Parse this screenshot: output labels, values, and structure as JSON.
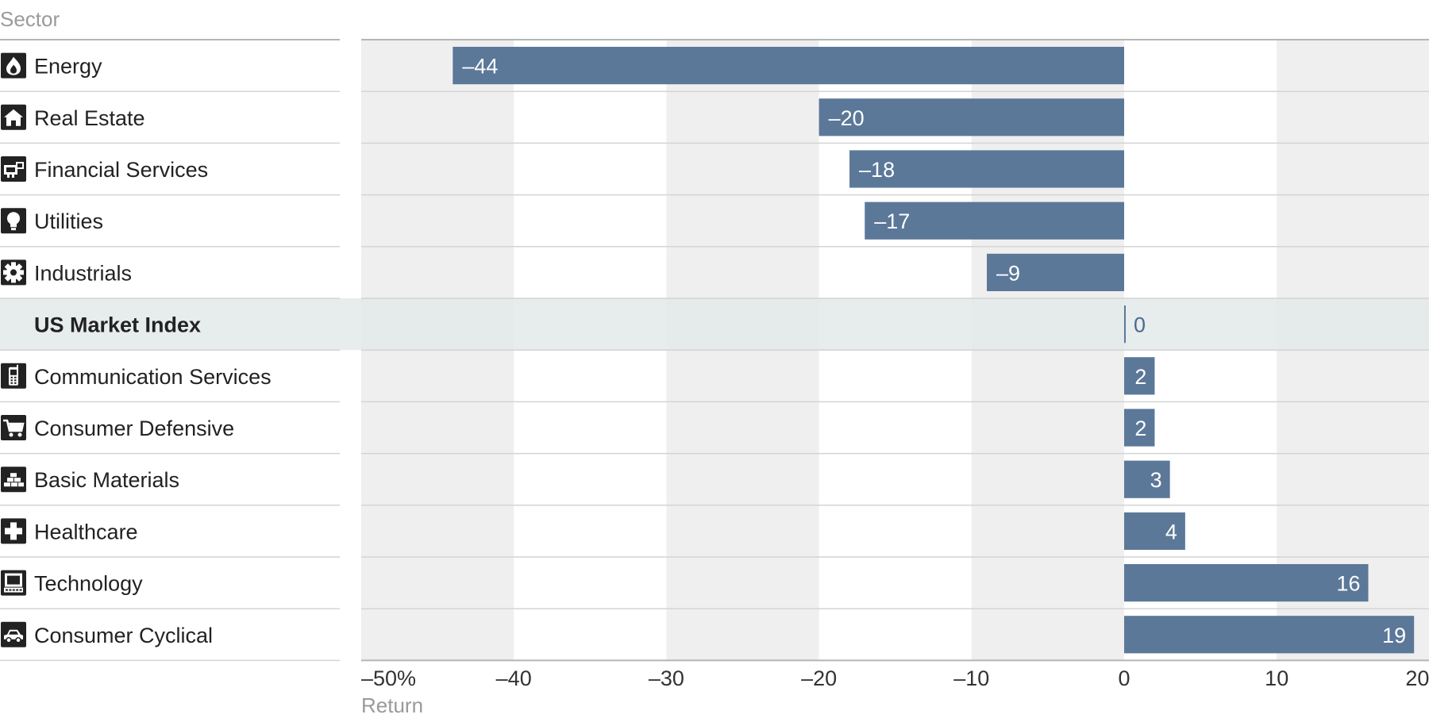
{
  "chart_data": {
    "type": "bar",
    "orientation": "horizontal",
    "label_column_header": "Sector",
    "xlabel": "Return",
    "xlim": [
      -50,
      20
    ],
    "xticks": [
      -50,
      -40,
      -30,
      -20,
      -10,
      0,
      10,
      20
    ],
    "xtick_labels": [
      "–50%",
      "–40",
      "–30",
      "–20",
      "–10",
      "0",
      "10",
      "20"
    ],
    "highlight_category": "US Market Index",
    "categories": [
      "Energy",
      "Real Estate",
      "Financial Services",
      "Utilities",
      "Industrials",
      "US Market Index",
      "Communication Services",
      "Consumer Defensive",
      "Basic Materials",
      "Healthcare",
      "Technology",
      "Consumer Cyclical"
    ],
    "icons": [
      "flame-icon",
      "house-icon",
      "financial-services-icon",
      "lightbulb-icon",
      "gear-icon",
      "",
      "phone-icon",
      "shopping-cart-icon",
      "gold-bars-icon",
      "medical-cross-icon",
      "computer-icon",
      "car-icon"
    ],
    "values": [
      -44,
      -20,
      -18,
      -17,
      -9,
      0,
      2,
      2,
      3,
      4,
      16,
      19
    ],
    "value_labels": [
      "–44",
      "–20",
      "–18",
      "–17",
      "–9",
      "0",
      "2",
      "2",
      "3",
      "4",
      "16",
      "19"
    ],
    "grid": true,
    "colors": {
      "bar": "#5b7899",
      "band_shade": "#efefef",
      "highlight_row": "#e3e9e9",
      "divider": "#d4d4d4",
      "axis": "#b5b5b5",
      "icon_bg": "#222222",
      "value_label_inside": "#ffffff",
      "value_label_outside": "#4a6a8f"
    }
  }
}
